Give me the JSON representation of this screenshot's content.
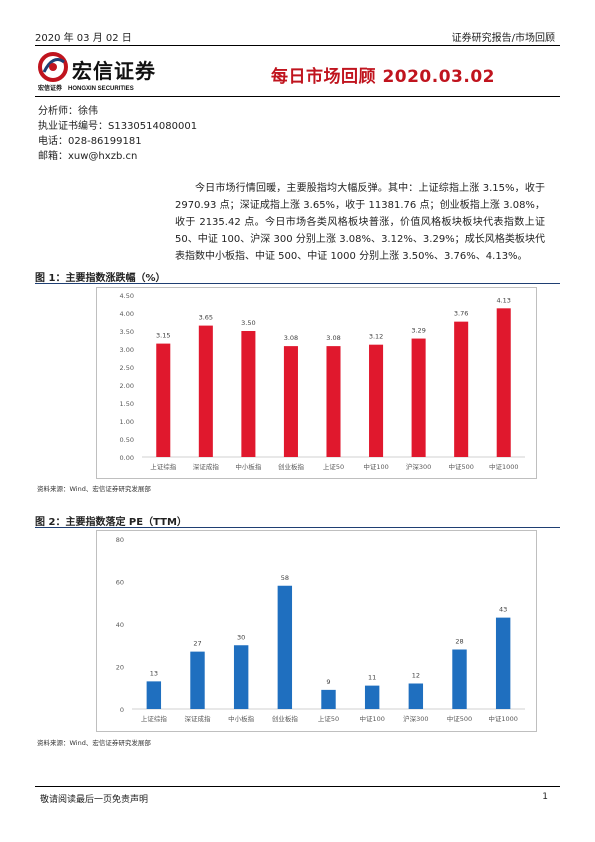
{
  "header": {
    "date": "2020 年 03 月 02 日",
    "category": "证券研究报告/市场回顾",
    "logo_text": "宏信证券",
    "logo_sub_cn": "宏信证券",
    "logo_sub_en": "HONGXIN SECURITIES",
    "title": "每日市场回顾 2020.03.02"
  },
  "meta": {
    "analyst": "分析师：徐伟",
    "cert": "执业证书编号：S1330514080001",
    "phone": "电话：028-86199181",
    "email": "邮箱：xuw@hxzb.cn"
  },
  "summary": "今日市场行情回暖，主要股指均大幅反弹。其中：上证综指上涨 3.15%，收于 2970.93 点；深证成指上涨 3.65%，收于 11381.76 点；创业板指上涨 3.08%，收于 2135.42 点。今日市场各类风格板块普涨，价值风格板块板块代表指数上证 50、中证 100、沪深 300 分别上涨 3.08%、3.12%、3.29%；成长风格类板块代表指数中小板指、中证 500、中证 1000 分别上涨 3.50%、3.76%、4.13%。",
  "figures": [
    {
      "label": "图 1：",
      "title": "主要指数涨跌幅（%）",
      "source": "资料来源：Wind、宏信证券研究发展部"
    },
    {
      "label": "图 2：",
      "title": "主要指数落定 PE（TTM）",
      "source": "资料来源：Wind、宏信证券研究发展部"
    }
  ],
  "chart_data": [
    {
      "type": "bar",
      "title": "主要指数涨跌幅（%）",
      "categories": [
        "上证综指",
        "深证成指",
        "中小板指",
        "创业板指",
        "上证50",
        "中证100",
        "沪深300",
        "中证500",
        "中证1000"
      ],
      "values": [
        3.15,
        3.65,
        3.5,
        3.08,
        3.08,
        3.12,
        3.29,
        3.76,
        4.13
      ],
      "value_labels": [
        "3.15",
        "3.65",
        "3.50",
        "3.08",
        "3.08",
        "3.12",
        "3.29",
        "3.76",
        "4.13"
      ],
      "ylim": [
        0,
        4.5
      ],
      "yticks": [
        "0.00",
        "0.50",
        "1.00",
        "1.50",
        "2.00",
        "2.50",
        "3.00",
        "3.50",
        "4.00",
        "4.50"
      ],
      "color": "#e0182d",
      "grid": false
    },
    {
      "type": "bar",
      "title": "主要指数落定 PE（TTM）",
      "categories": [
        "上证综指",
        "深证成指",
        "中小板指",
        "创业板指",
        "上证50",
        "中证100",
        "沪深300",
        "中证500",
        "中证1000"
      ],
      "values": [
        13,
        27,
        30,
        58,
        9,
        11,
        12,
        28,
        43
      ],
      "value_labels": [
        "13",
        "27",
        "30",
        "58",
        "9",
        "11",
        "12",
        "28",
        "43"
      ],
      "ylim": [
        0,
        80
      ],
      "yticks": [
        "0",
        "20",
        "40",
        "60",
        "80"
      ],
      "color": "#1f6fbf",
      "grid": false
    }
  ],
  "footer": {
    "disclaimer": "敬请阅读最后一页免责声明",
    "page": "1"
  }
}
